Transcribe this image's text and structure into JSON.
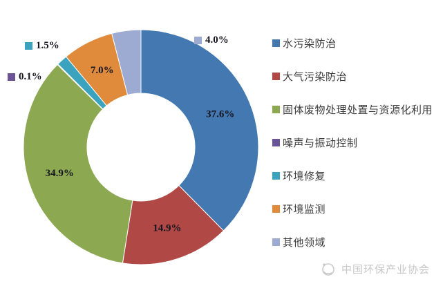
{
  "chart_data": {
    "type": "pie",
    "donut": true,
    "title": "",
    "direction": "clockwise",
    "start_angle_deg": 0,
    "legend_position": "right",
    "slices": [
      {
        "name": "水污染防治",
        "value": 37.6,
        "label": "37.6%",
        "color": "#4478B0",
        "label_style": "inside"
      },
      {
        "name": "大气污染防治",
        "value": 14.9,
        "label": "14.9%",
        "color": "#B04946",
        "label_style": "inside"
      },
      {
        "name": "固体废物处理处置与资源化利用",
        "value": 34.9,
        "label": "34.9%",
        "color": "#8CA851",
        "label_style": "inside"
      },
      {
        "name": "噪声与振动控制",
        "value": 0.1,
        "label": "0.1%",
        "color": "#6B5495",
        "label_style": "callout"
      },
      {
        "name": "环境修复",
        "value": 1.5,
        "label": "1.5%",
        "color": "#3BA3BE",
        "label_style": "callout"
      },
      {
        "name": "环境监测",
        "value": 7.0,
        "label": "7.0%",
        "color": "#E08B3C",
        "label_style": "inside"
      },
      {
        "name": "其他领域",
        "value": 4.0,
        "label": "4.0%",
        "color": "#9DAAD2",
        "label_style": "callout"
      }
    ]
  },
  "watermark": {
    "text": "中国环保产业协会"
  }
}
